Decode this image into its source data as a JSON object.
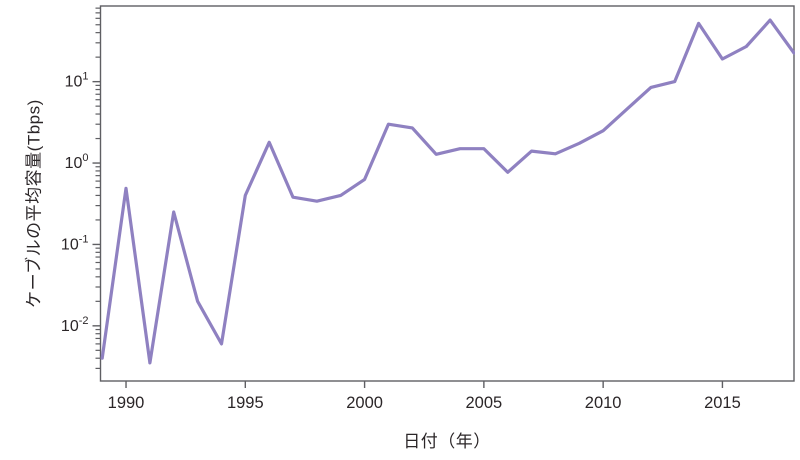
{
  "chart_data": {
    "type": "line",
    "title": "",
    "xlabel": "日付（年）",
    "ylabel": "ケーブルの平均容量(Tbps)",
    "yscale": "log",
    "grid": false,
    "legend": "none",
    "xlim": [
      1988.93,
      2018.0
    ],
    "ylim": [
      0.0021,
      85
    ],
    "x_ticks": [
      1990,
      1995,
      2000,
      2005,
      2010,
      2015
    ],
    "y_tick_exponents": [
      1,
      0,
      -1,
      -2
    ],
    "series": [
      {
        "name": "ケーブルの平均容量",
        "x": [
          1989,
          1990,
          1991,
          1992,
          1993,
          1994,
          1995,
          1996,
          1997,
          1998,
          1999,
          2000,
          2001,
          2002,
          2003,
          2004,
          2005,
          2006,
          2007,
          2008,
          2009,
          2010,
          2011,
          2012,
          2013,
          2014,
          2015,
          2016,
          2017,
          2018
        ],
        "values": [
          0.004,
          0.49,
          0.0035,
          0.25,
          0.02,
          0.006,
          0.4,
          1.8,
          0.38,
          0.34,
          0.4,
          0.63,
          3.0,
          2.7,
          1.28,
          1.5,
          1.5,
          0.77,
          1.4,
          1.3,
          1.75,
          2.5,
          4.6,
          8.5,
          10.0,
          52.0,
          19.0,
          27.0,
          57.0,
          22.5
        ]
      }
    ],
    "colors": {
      "line": "#8f81c1",
      "axis": "#5f5f63",
      "text": "#2b2628",
      "background": "#ffffff"
    }
  }
}
